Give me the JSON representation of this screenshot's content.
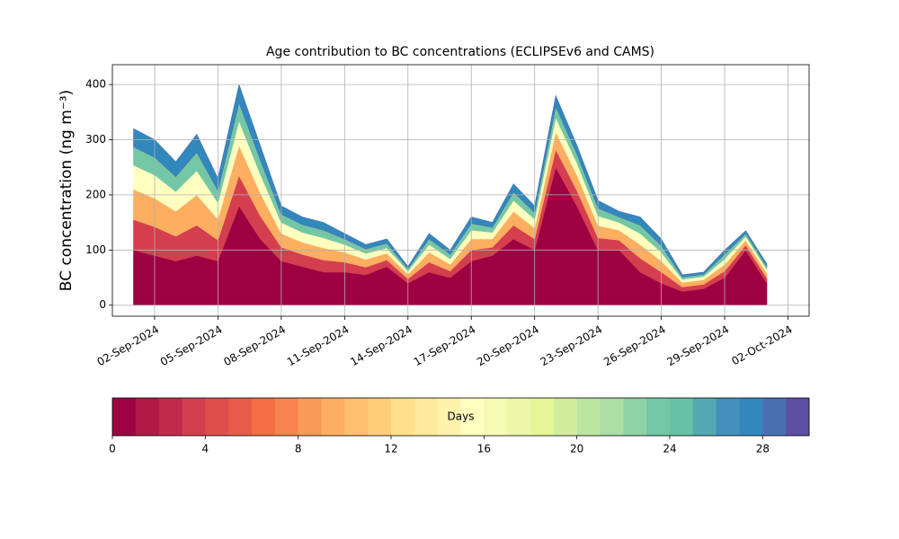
{
  "chart_data": {
    "type": "stacked_area",
    "title": "Age contribution to BC concentrations (ECLIPSEv6 and CAMS)",
    "ylabel": "BC concentration (ng m⁻³)",
    "x": [
      "2024-09-01",
      "2024-09-02",
      "2024-09-03",
      "2024-09-04",
      "2024-09-05",
      "2024-09-06",
      "2024-09-07",
      "2024-09-08",
      "2024-09-09",
      "2024-09-10",
      "2024-09-11",
      "2024-09-12",
      "2024-09-13",
      "2024-09-14",
      "2024-09-15",
      "2024-09-16",
      "2024-09-17",
      "2024-09-18",
      "2024-09-19",
      "2024-09-20",
      "2024-09-21",
      "2024-09-22",
      "2024-09-23",
      "2024-09-24",
      "2024-09-25",
      "2024-09-26",
      "2024-09-27",
      "2024-09-28",
      "2024-09-29",
      "2024-09-30",
      "2024-10-01"
    ],
    "series": [
      {
        "color": "#9e0142",
        "values": [
          100,
          90,
          80,
          90,
          80,
          180,
          120,
          80,
          70,
          60,
          60,
          55,
          70,
          40,
          60,
          50,
          80,
          90,
          120,
          100,
          250,
          180,
          100,
          100,
          60,
          40,
          25,
          30,
          50,
          100,
          40
        ]
      },
      {
        "color": "#d53e4f",
        "values": [
          55,
          52,
          45,
          55,
          38,
          55,
          42,
          25,
          22,
          22,
          18,
          14,
          12,
          8,
          18,
          12,
          20,
          15,
          25,
          20,
          32,
          28,
          22,
          18,
          25,
          20,
          8,
          8,
          12,
          9,
          9
        ]
      },
      {
        "color": "#fdae61",
        "values": [
          55,
          52,
          45,
          55,
          38,
          55,
          42,
          25,
          22,
          22,
          18,
          14,
          12,
          8,
          18,
          12,
          20,
          15,
          25,
          20,
          32,
          28,
          22,
          18,
          25,
          20,
          8,
          8,
          12,
          9,
          9
        ]
      },
      {
        "color": "#ffffbf",
        "values": [
          44,
          42,
          36,
          44,
          30,
          44,
          34,
          20,
          18,
          18,
          14,
          11,
          10,
          6,
          14,
          10,
          16,
          12,
          20,
          16,
          26,
          22,
          18,
          14,
          20,
          16,
          6,
          6,
          10,
          7,
          7
        ]
      },
      {
        "color": "#74c7a5",
        "values": [
          33,
          32,
          27,
          33,
          22,
          33,
          26,
          15,
          14,
          14,
          10,
          8,
          8,
          4,
          10,
          8,
          12,
          9,
          15,
          12,
          20,
          16,
          14,
          10,
          15,
          12,
          4,
          4,
          8,
          5,
          5
        ]
      },
      {
        "color": "#3288bd",
        "values": [
          33,
          32,
          27,
          33,
          22,
          33,
          26,
          15,
          14,
          14,
          10,
          8,
          8,
          4,
          10,
          8,
          12,
          9,
          15,
          12,
          20,
          16,
          14,
          10,
          15,
          12,
          4,
          4,
          8,
          5,
          5
        ]
      }
    ],
    "xlim": [
      "2024-08-31",
      "2024-10-03"
    ],
    "xticks": [
      {
        "value": "2024-09-02",
        "label": "02-Sep-2024"
      },
      {
        "value": "2024-09-05",
        "label": "05-Sep-2024"
      },
      {
        "value": "2024-09-08",
        "label": "08-Sep-2024"
      },
      {
        "value": "2024-09-11",
        "label": "11-Sep-2024"
      },
      {
        "value": "2024-09-14",
        "label": "14-Sep-2024"
      },
      {
        "value": "2024-09-17",
        "label": "17-Sep-2024"
      },
      {
        "value": "2024-09-20",
        "label": "20-Sep-2024"
      },
      {
        "value": "2024-09-23",
        "label": "23-Sep-2024"
      },
      {
        "value": "2024-09-26",
        "label": "26-Sep-2024"
      },
      {
        "value": "2024-09-29",
        "label": "29-Sep-2024"
      },
      {
        "value": "2024-10-02",
        "label": "02-Oct-2024"
      }
    ],
    "ylim": [
      -20,
      436
    ],
    "yticks": [
      0,
      100,
      200,
      300,
      400
    ],
    "grid": true,
    "colorbar": {
      "label": "Days",
      "lim": [
        0,
        30
      ],
      "ticks": [
        0,
        4,
        8,
        12,
        16,
        20,
        24,
        28
      ],
      "colors": [
        "#9e0142",
        "#b01a45",
        "#c22a49",
        "#d53e4f",
        "#df4e4b",
        "#e85b48",
        "#f46d43",
        "#f7844e",
        "#fa9a58",
        "#fdae61",
        "#fdbf6f",
        "#fecd7a",
        "#fee08b",
        "#feea9a",
        "#fff3ac",
        "#ffffbf",
        "#f5fbb2",
        "#ebf7a6",
        "#e6f598",
        "#d1ec9c",
        "#bbe4a0",
        "#abdda4",
        "#8fd2a4",
        "#74c7a5",
        "#66c2a5",
        "#53a9b1",
        "#4291bc",
        "#3288bd",
        "#4a6fb1",
        "#5e4fa2"
      ]
    }
  }
}
